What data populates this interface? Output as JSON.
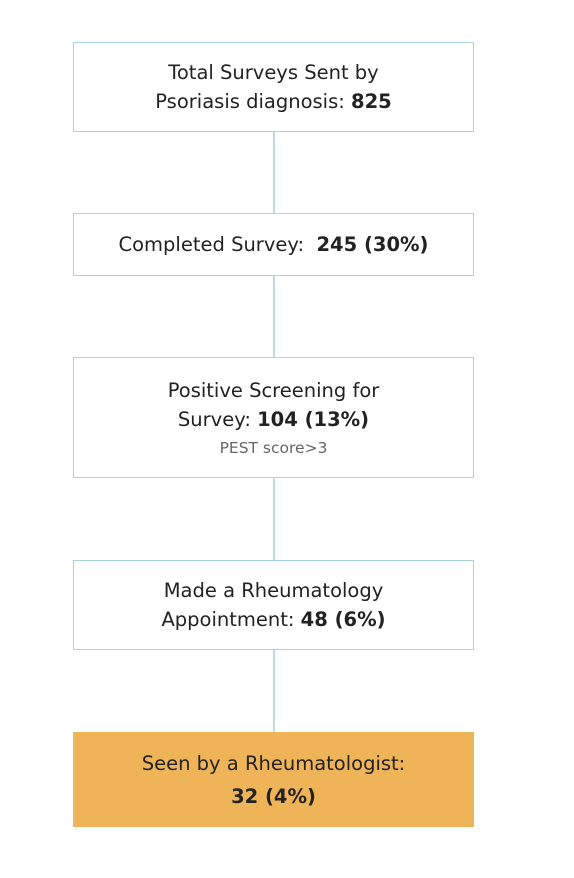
{
  "nodes": [
    {
      "lines": [
        "Total Surveys Sent by",
        "Psoriasis diagnosis:"
      ],
      "value": "825"
    },
    {
      "lines": [
        "Completed Survey:"
      ],
      "value": "245 (30%)"
    },
    {
      "lines": [
        "Positive Screening for",
        "Survey:"
      ],
      "value": "104 (13%)",
      "note": "PEST score>3"
    },
    {
      "lines": [
        "Made a Rheumatology",
        "Appointment:"
      ],
      "value": "48 (6%)"
    },
    {
      "lines": [
        "Seen by a Rheumatologist:"
      ],
      "value": "32 (4%)"
    }
  ]
}
